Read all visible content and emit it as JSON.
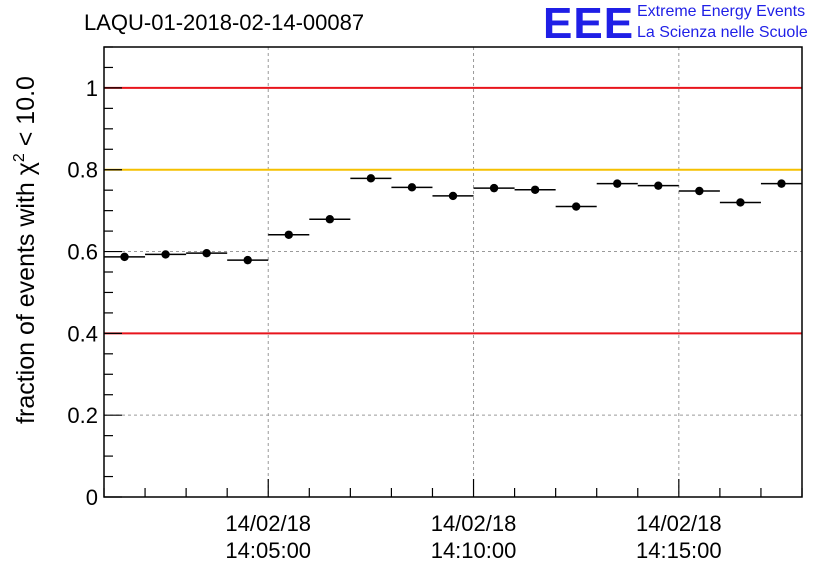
{
  "header": {
    "title": "LAQU-01-2018-02-14-00087",
    "logo": {
      "mark": "EEE",
      "line1": "Extreme Energy Events",
      "line2": "La Scienza nelle Scuole",
      "color": "#1f1fe6"
    }
  },
  "chart_data": {
    "type": "scatter",
    "title": "LAQU-01-2018-02-14-00087",
    "ylabel_prefix": "fraction of events with ",
    "ylabel_symbol": "χ",
    "ylabel_superscript": "2",
    "ylabel_suffix": " < 10.0",
    "xlabel": "",
    "ylim": [
      0,
      1.1
    ],
    "x_range_minutes": [
      0,
      17
    ],
    "x_time_origin": "14/02/18 14:01:00",
    "yticks": [
      "0",
      "0.2",
      "0.4",
      "0.6",
      "0.8",
      "1"
    ],
    "ytick_values": [
      0,
      0.2,
      0.4,
      0.6,
      0.8,
      1.0
    ],
    "xticks": [
      {
        "minute": 4,
        "date": "14/02/18",
        "time": "14:05:00"
      },
      {
        "minute": 9,
        "date": "14/02/18",
        "time": "14:10:00"
      },
      {
        "minute": 14,
        "date": "14/02/18",
        "time": "14:15:00"
      }
    ],
    "grid": true,
    "reference_lines": [
      {
        "y": 1.0,
        "color": "#e8141c"
      },
      {
        "y": 0.8,
        "color": "#f5c000"
      },
      {
        "y": 0.4,
        "color": "#e8141c"
      }
    ],
    "series": [
      {
        "marker_color": "#000000",
        "x_bin_width_minutes": 1,
        "x_center_minutes": [
          0.5,
          1.5,
          2.5,
          3.5,
          4.5,
          5.5,
          6.5,
          7.5,
          8.5,
          9.5,
          10.5,
          11.5,
          12.5,
          13.5,
          14.5,
          15.5,
          16.5
        ],
        "values": [
          0.587,
          0.593,
          0.596,
          0.579,
          0.641,
          0.679,
          0.779,
          0.757,
          0.736,
          0.755,
          0.751,
          0.71,
          0.766,
          0.761,
          0.748,
          0.72,
          0.766
        ]
      }
    ]
  }
}
